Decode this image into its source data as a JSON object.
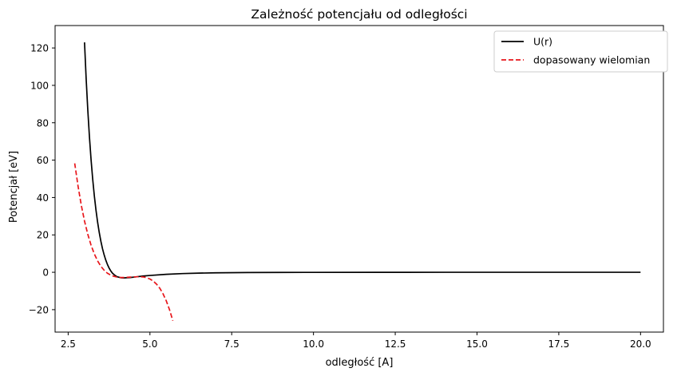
{
  "chart_data": {
    "type": "line",
    "title": "Zależność potencjału od odległości",
    "xlabel": "odległość [A]",
    "ylabel": "Potencjał [eV]",
    "xlim": [
      2.1,
      20.7
    ],
    "ylim": [
      -32,
      132
    ],
    "xticks": [
      2.5,
      5.0,
      7.5,
      10.0,
      12.5,
      15.0,
      17.5,
      20.0
    ],
    "xtick_labels": [
      "2.5",
      "5.0",
      "7.5",
      "10.0",
      "12.5",
      "15.0",
      "17.5",
      "20.0"
    ],
    "yticks": [
      -20,
      0,
      20,
      40,
      60,
      80,
      100,
      120
    ],
    "ytick_labels": [
      "−20",
      "0",
      "20",
      "40",
      "60",
      "80",
      "100",
      "120"
    ],
    "grid": false,
    "legend_position": "top-right",
    "series": [
      {
        "name": "U(r)",
        "color": "#000000",
        "style": "solid",
        "x": [
          3.0,
          3.05,
          3.1,
          3.15,
          3.2,
          3.25,
          3.3,
          3.35,
          3.4,
          3.45,
          3.5,
          3.55,
          3.6,
          3.65,
          3.7,
          3.75,
          3.8,
          3.85,
          3.9,
          3.95,
          4.0,
          4.1,
          4.2,
          4.3,
          4.4,
          4.5,
          4.6,
          4.8,
          5.0,
          5.5,
          6.0,
          6.5,
          7.0,
          8.0,
          9.0,
          10.0,
          12.0,
          14.0,
          16.0,
          18.0,
          20.0
        ],
        "y": [
          123,
          103.5,
          86.8,
          72.5,
          60.3,
          49.8,
          40.9,
          33.3,
          26.8,
          21.3,
          16.6,
          12.6,
          9.3,
          6.5,
          4.2,
          2.3,
          0.8,
          -0.4,
          -1.2,
          -1.9,
          -2.4,
          -2.9,
          -3.0,
          -2.9,
          -2.8,
          -2.6,
          -2.4,
          -2.0,
          -1.7,
          -1.1,
          -0.7,
          -0.45,
          -0.3,
          -0.14,
          -0.07,
          -0.04,
          -0.01,
          -0.005,
          -0.002,
          -0.001,
          -0.0006
        ]
      },
      {
        "name": "dopasowany wielomian",
        "color": "#e8161b",
        "style": "dashed",
        "x": [
          2.7,
          2.8,
          2.9,
          3.0,
          3.1,
          3.2,
          3.3,
          3.4,
          3.5,
          3.6,
          3.7,
          3.8,
          3.9,
          4.0,
          4.1,
          4.2,
          4.3,
          4.4,
          4.5,
          4.6,
          4.7,
          4.8,
          4.9,
          5.0,
          5.1,
          5.2,
          5.3,
          5.4,
          5.5,
          5.6,
          5.7
        ],
        "y": [
          58.3,
          46.3,
          36.0,
          27.4,
          20.3,
          14.5,
          9.8,
          6.1,
          3.2,
          1.1,
          -0.5,
          -1.5,
          -2.2,
          -2.6,
          -2.8,
          -2.8,
          -2.7,
          -2.6,
          -2.5,
          -2.4,
          -2.4,
          -2.5,
          -2.9,
          -3.6,
          -4.7,
          -6.3,
          -8.5,
          -11.5,
          -15.3,
          -20.1,
          -25.9
        ]
      }
    ]
  }
}
